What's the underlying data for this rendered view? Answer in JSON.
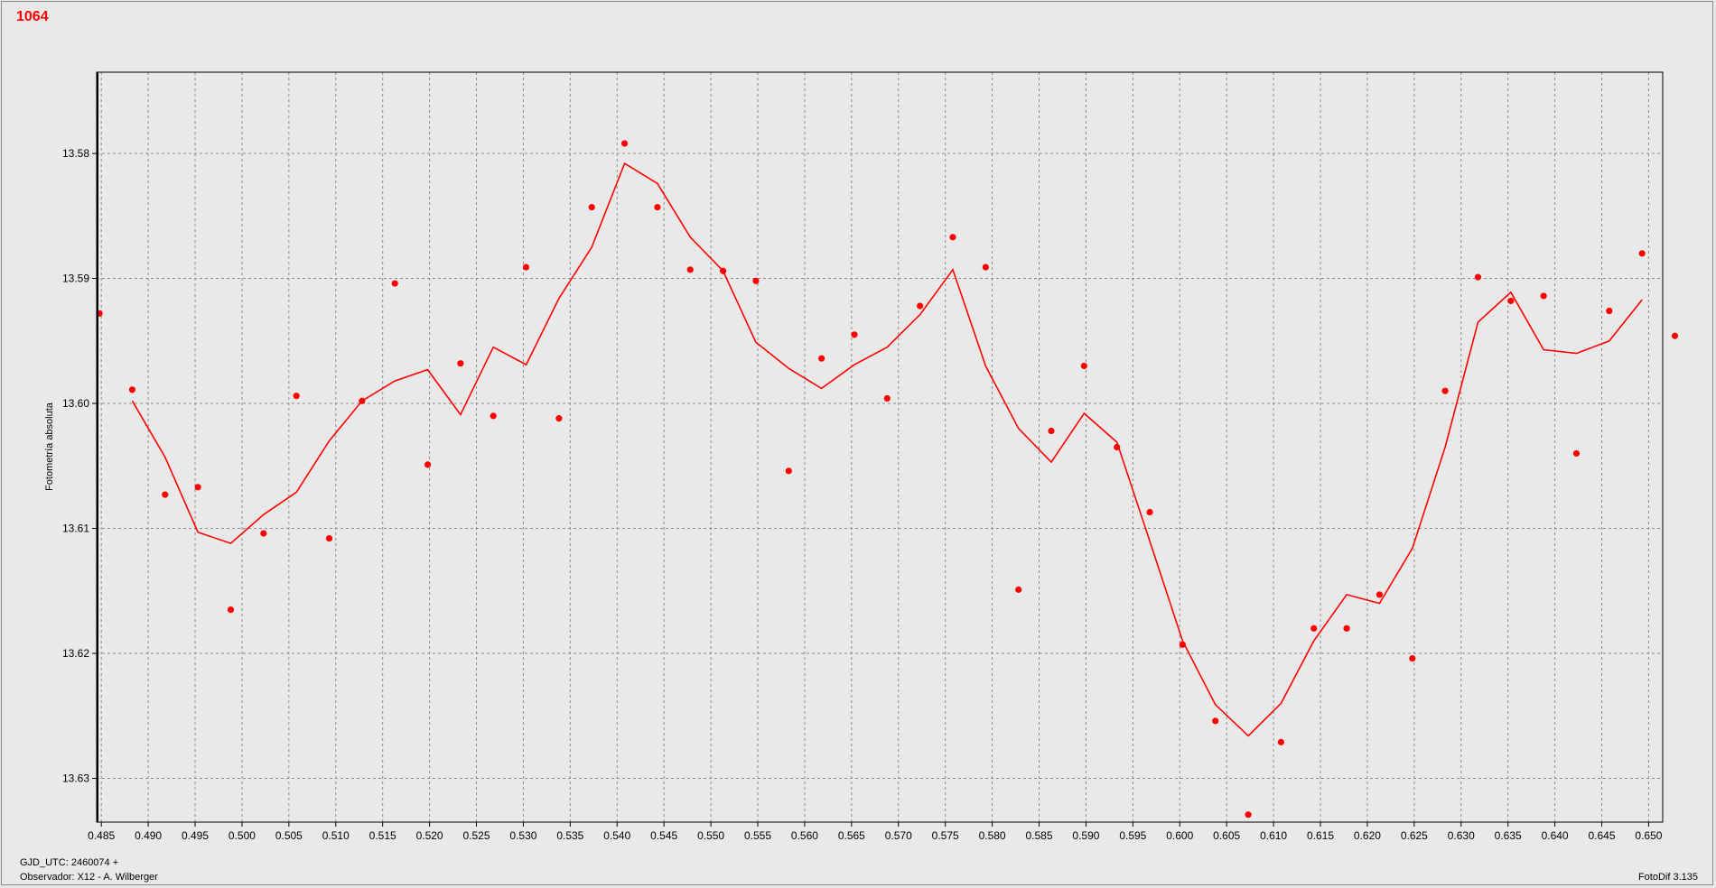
{
  "header": {
    "title": "1064"
  },
  "footer": {
    "gjd_label": "GJD_UTC: 2460074 +",
    "observer": "Observador: X12 - A. Wilberger",
    "software": "FotoDif 3.135"
  },
  "chart_data": {
    "type": "scatter",
    "ylabel": "Fotometría absoluta",
    "xlim": [
      0.4845,
      0.6515
    ],
    "ylim": [
      13.5735,
      13.6335
    ],
    "y_inverted": true,
    "grid": true,
    "x_ticks": [
      "0.485",
      "0.490",
      "0.495",
      "0.500",
      "0.505",
      "0.510",
      "0.515",
      "0.520",
      "0.525",
      "0.530",
      "0.535",
      "0.540",
      "0.545",
      "0.550",
      "0.555",
      "0.560",
      "0.565",
      "0.570",
      "0.575",
      "0.580",
      "0.585",
      "0.590",
      "0.595",
      "0.600",
      "0.605",
      "0.610",
      "0.615",
      "0.620",
      "0.625",
      "0.630",
      "0.635",
      "0.640",
      "0.645",
      "0.650"
    ],
    "y_ticks": [
      "13.58",
      "13.59",
      "13.60",
      "13.61",
      "13.62",
      "13.63"
    ],
    "series": [
      {
        "kind": "points",
        "color": "#ff0000",
        "x": [
          0.4848,
          0.4883,
          0.4918,
          0.4953,
          0.4988,
          0.5023,
          0.5058,
          0.5093,
          0.5128,
          0.5163,
          0.5198,
          0.5233,
          0.5268,
          0.5303,
          0.5338,
          0.5373,
          0.5408,
          0.5443,
          0.5478,
          0.5513,
          0.5548,
          0.5583,
          0.5618,
          0.5653,
          0.5688,
          0.5723,
          0.5758,
          0.5793,
          0.5828,
          0.5863,
          0.5898,
          0.5933,
          0.5968,
          0.6003,
          0.6038,
          0.6073,
          0.6108,
          0.6143,
          0.6178,
          0.6213,
          0.6248,
          0.6283,
          0.6318,
          0.6353,
          0.6388,
          0.6423,
          0.6458,
          0.6493,
          0.6528
        ],
        "y": [
          13.5928,
          13.5989,
          13.6073,
          13.6067,
          13.6165,
          13.6104,
          13.5994,
          13.6108,
          13.5998,
          13.5904,
          13.6049,
          13.5968,
          13.601,
          13.5891,
          13.6012,
          13.5843,
          13.5792,
          13.5843,
          13.5893,
          13.5894,
          13.5902,
          13.6054,
          13.5964,
          13.5945,
          13.5996,
          13.5922,
          13.5867,
          13.5891,
          13.6149,
          13.6022,
          13.597,
          13.6035,
          13.6087,
          13.6193,
          13.6254,
          13.6329,
          13.6271,
          13.618,
          13.618,
          13.6153,
          13.6204,
          13.599,
          13.5899,
          13.5918,
          13.5914,
          13.604,
          13.5926,
          13.588,
          13.5946
        ]
      },
      {
        "kind": "line",
        "color": "#ff0000",
        "x": [
          0.4883,
          0.4918,
          0.4953,
          0.4988,
          0.5023,
          0.5058,
          0.5093,
          0.5128,
          0.5163,
          0.5198,
          0.5233,
          0.5268,
          0.5303,
          0.5338,
          0.5373,
          0.5408,
          0.5443,
          0.5478,
          0.5513,
          0.5548,
          0.5583,
          0.5618,
          0.5653,
          0.5688,
          0.5723,
          0.5758,
          0.5793,
          0.5828,
          0.5863,
          0.5898,
          0.5933,
          0.5968,
          0.6003,
          0.6038,
          0.6073,
          0.6108,
          0.6143,
          0.6178,
          0.6213,
          0.6248,
          0.6283,
          0.6318,
          0.6353,
          0.6388,
          0.6423,
          0.6458,
          0.6493
        ],
        "y": [
          13.5998,
          13.6043,
          13.6103,
          13.6112,
          13.6089,
          13.6071,
          13.603,
          13.5998,
          13.5982,
          13.5973,
          13.6009,
          13.5955,
          13.5969,
          13.5916,
          13.5875,
          13.5808,
          13.5824,
          13.5867,
          13.5894,
          13.5951,
          13.5972,
          13.5988,
          13.5969,
          13.5955,
          13.5929,
          13.5893,
          13.597,
          13.602,
          13.6047,
          13.6008,
          13.6031,
          13.611,
          13.619,
          13.6241,
          13.6266,
          13.624,
          13.619,
          13.6153,
          13.616,
          13.6116,
          13.6035,
          13.5935,
          13.5911,
          13.5957,
          13.596,
          13.595,
          13.5917
        ]
      }
    ]
  }
}
